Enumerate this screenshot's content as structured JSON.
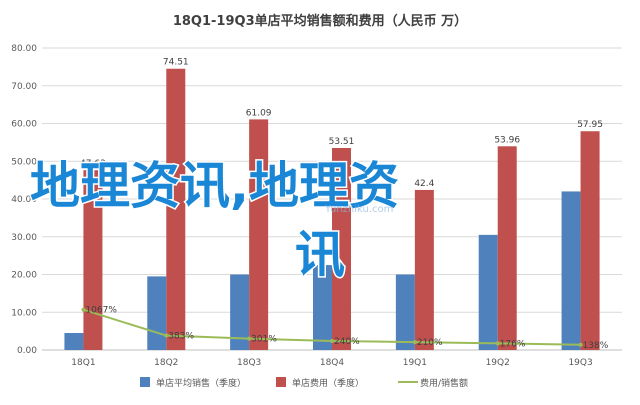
{
  "chart_data": {
    "type": "bar",
    "title": "18Q1-19Q3单店平均销售额和费用（人民币 万）",
    "categories": [
      "18Q1",
      "18Q2",
      "18Q3",
      "18Q4",
      "19Q1",
      "19Q2",
      "19Q3"
    ],
    "ylim": [
      0,
      80
    ],
    "yticks": [
      "0.00",
      "10.00",
      "20.00",
      "30.00",
      "40.00",
      "50.00",
      "60.00",
      "70.00",
      "80.00"
    ],
    "grid": true,
    "legend_position": "bottom",
    "series": [
      {
        "name": "单店平均销售（季度）",
        "kind": "bar",
        "color": "#4f81bd",
        "values": [
          4.5,
          19.5,
          20.0,
          22.5,
          20.0,
          30.5,
          42.0
        ],
        "labels": [
          "",
          "",
          "",
          "",
          "",
          "",
          ""
        ]
      },
      {
        "name": "单店费用（季度）",
        "kind": "bar",
        "color": "#c0504d",
        "values": [
          47.63,
          74.51,
          61.09,
          53.51,
          42.4,
          53.96,
          57.95
        ],
        "labels": [
          "47.63",
          "74.51",
          "61.09",
          "53.51",
          "42.4",
          "53.96",
          "57.95"
        ]
      },
      {
        "name": "费用/销售额",
        "kind": "line",
        "color": "#9bbb59",
        "values": [
          10.67,
          3.83,
          3.01,
          2.4,
          2.1,
          1.76,
          1.38
        ],
        "labels": [
          "1067%",
          "383%",
          "301%",
          "240%",
          "210%",
          "176%",
          "138%"
        ]
      }
    ]
  },
  "watermark": {
    "line1": "地理资讯,地理资",
    "line2": "讯",
    "brand": "Yunzhiku.com"
  }
}
